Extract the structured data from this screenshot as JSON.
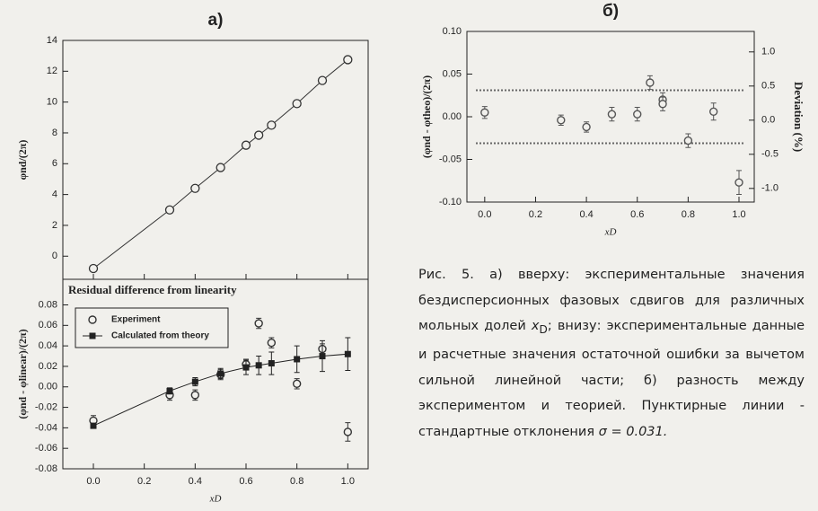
{
  "chart_data": [
    {
      "type": "line",
      "title": "а)",
      "y_label": "φnd/(2π)",
      "x": [
        0,
        0.3,
        0.4,
        0.5,
        0.6,
        0.65,
        0.7,
        0.8,
        0.9,
        1.0
      ],
      "values": [
        -0.8,
        3.0,
        4.4,
        5.75,
        7.2,
        7.85,
        8.5,
        9.9,
        11.4,
        12.75
      ],
      "color": "#333333",
      "xlim": [
        -0.12,
        1.08
      ],
      "ylim": [
        -1.5,
        14
      ],
      "yticks": [
        0,
        2,
        4,
        6,
        8,
        10,
        12,
        14
      ],
      "xticks": [
        {
          "value": 0,
          "label": "0.0"
        },
        0.2,
        0.4,
        0.6,
        0.8,
        {
          "value": 1,
          "label": "1.0"
        }
      ]
    },
    {
      "type": "scatter",
      "annotation": "Residual difference from linearity",
      "x_label": "xD",
      "y_label": "(φnd - φlinear)/(2π)",
      "x": [
        0,
        0.3,
        0.4,
        0.5,
        0.6,
        0.65,
        0.7,
        0.8,
        0.9,
        1.0
      ],
      "series": [
        {
          "name": "Experiment",
          "color": "#333333",
          "marker": "circle",
          "values": [
            -0.033,
            -0.008,
            -0.008,
            0.012,
            0.022,
            0.062,
            0.043,
            0.003,
            0.037,
            -0.044
          ],
          "errors": [
            0.005,
            0.005,
            0.005,
            0.005,
            0.005,
            0.005,
            0.005,
            0.005,
            0.005,
            0.009
          ]
        },
        {
          "name": "Calculated from theory",
          "color": "#222222",
          "marker": "square",
          "line": true,
          "values": [
            -0.038,
            -0.004,
            0.005,
            0.013,
            0.019,
            0.021,
            0.023,
            0.027,
            0.03,
            0.032
          ],
          "errors": [
            0.002,
            0.003,
            0.004,
            0.005,
            0.007,
            0.009,
            0.011,
            0.013,
            0.015,
            0.016
          ]
        }
      ],
      "xlim": [
        -0.12,
        1.08
      ],
      "ylim": [
        -0.08,
        0.105
      ],
      "xticks": [
        {
          "value": 0,
          "label": "0.0"
        },
        0.2,
        0.4,
        0.6,
        0.8,
        {
          "value": 1,
          "label": "1.0"
        }
      ],
      "yticks": [
        -0.08,
        -0.06,
        -0.04,
        -0.02,
        {
          "value": 0,
          "label": "0.00"
        },
        0.02,
        0.04,
        0.06,
        0.08
      ]
    },
    {
      "type": "scatter",
      "title": "б)",
      "x_label": "xD",
      "y_label": "(φnd - φtheo)/(2π)",
      "y2_label": "Deviation (%)",
      "x": [
        0,
        0.3,
        0.4,
        0.5,
        0.6,
        0.65,
        0.7,
        0.7,
        0.8,
        0.9,
        1.0
      ],
      "series": [
        {
          "name": null,
          "color": "#555555",
          "marker": "circle",
          "values": [
            0.005,
            -0.004,
            -0.012,
            0.003,
            0.003,
            0.04,
            0.02,
            0.015,
            -0.028,
            0.006,
            -0.077
          ],
          "errors": [
            0.007,
            0.006,
            0.006,
            0.008,
            0.008,
            0.008,
            0.008,
            0.008,
            0.008,
            0.01,
            0.014
          ]
        }
      ],
      "reference_lines": [
        0.031,
        -0.031
      ],
      "xlim": [
        -0.07,
        1.06
      ],
      "ylim": [
        -0.1,
        0.1
      ],
      "y2lim": [
        -1.2,
        1.3
      ],
      "xticks": [
        {
          "value": 0,
          "label": "0.0"
        },
        0.2,
        0.4,
        0.6,
        0.8,
        {
          "value": 1,
          "label": "1.0"
        }
      ],
      "yticks": [
        {
          "value": -0.1,
          "label": "-0.10"
        },
        -0.05,
        {
          "value": 0,
          "label": "0.00"
        },
        0.05,
        {
          "value": 0.1,
          "label": "0.10"
        }
      ],
      "y2ticks": [
        {
          "value": -1,
          "label": "-1.0"
        },
        -0.5,
        {
          "value": 0,
          "label": "0.0"
        },
        0.5,
        {
          "value": 1,
          "label": "1.0"
        }
      ]
    }
  ],
  "caption": {
    "parts": [
      "Рис. 5. а) вверху: экспериментальные значения бездисперсионных фазовых сдвигов для различных мольных долей ",
      "x",
      "D",
      "; внизу: экспериментальные данные и расчетные значения остаточной ошибки за вычетом сильной линейной части; б) разность между экспериментом и теорией. Пунктирные линии - стандартные отклонения ",
      "σ = 0.031."
    ]
  }
}
